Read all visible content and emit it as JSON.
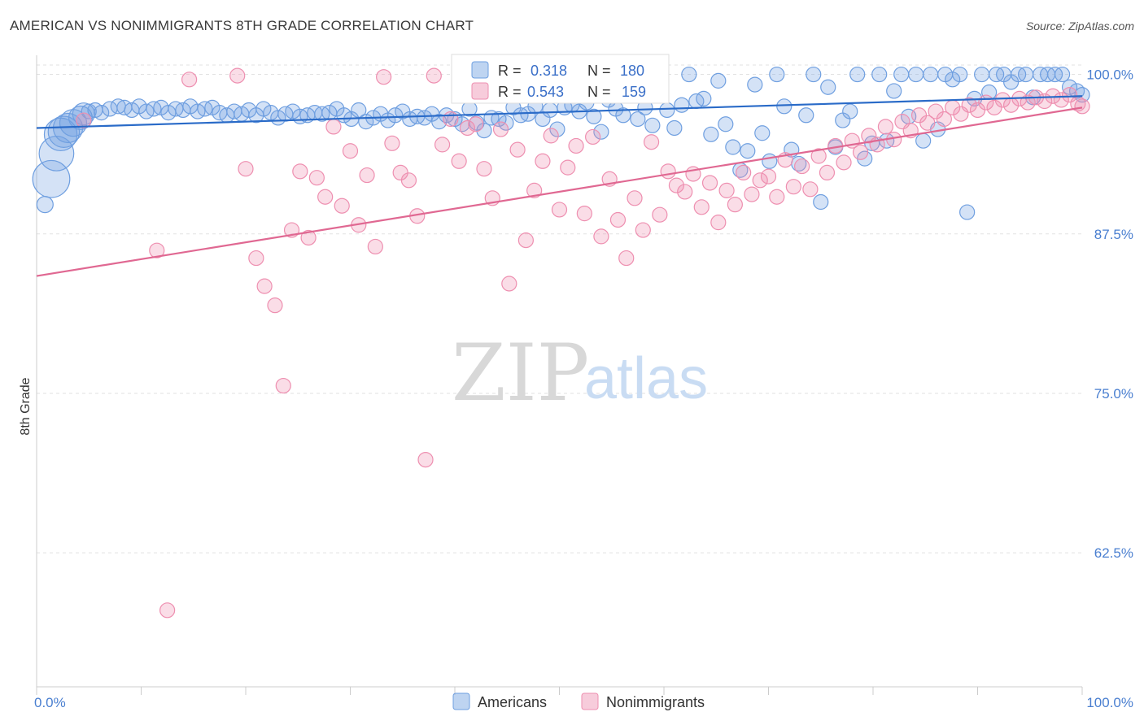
{
  "title": "AMERICAN VS NONIMMIGRANTS 8TH GRADE CORRELATION CHART",
  "source": "Source: ZipAtlas.com",
  "watermark": {
    "zip": "ZIP",
    "atlas": "atlas"
  },
  "colors": {
    "blue": "#6f9fe0",
    "blue_fill": "rgba(111,159,224,0.30)",
    "blue_line": "#2a6bc8",
    "pink": "#ee8fb0",
    "pink_fill": "rgba(238,143,176,0.30)",
    "pink_line": "#e06892",
    "grid": "#e2e2e2",
    "tick_text": "#4a7fd0"
  },
  "chart_data": {
    "type": "scatter",
    "title": "AMERICAN VS NONIMMIGRANTS 8TH GRADE CORRELATION CHART",
    "xlabel": "",
    "ylabel": "8th Grade",
    "xlim": [
      0,
      100
    ],
    "ylim": [
      52,
      101.5
    ],
    "x_tick_labels": [
      "0.0%",
      "100.0%"
    ],
    "y_ticks": [
      {
        "value": 100.0,
        "label": "100.0%"
      },
      {
        "value": 87.5,
        "label": "87.5%"
      },
      {
        "value": 75.0,
        "label": "75.0%"
      },
      {
        "value": 62.5,
        "label": "62.5%"
      }
    ],
    "legend": {
      "series": [
        {
          "name": "Americans",
          "r_label": "R =",
          "r": "0.318",
          "n_label": "N =",
          "n": "180"
        },
        {
          "name": "Nonimmigrants",
          "r_label": "R =",
          "r": "0.543",
          "n_label": "N =",
          "n": "159"
        }
      ]
    },
    "series": [
      {
        "name": "Americans",
        "trend": [
          [
            0,
            95.8
          ],
          [
            100,
            98.3
          ]
        ],
        "points": [
          [
            0.8,
            89.8
          ],
          [
            1.4,
            91.8
          ],
          [
            1.9,
            93.8
          ],
          [
            2.3,
            95.3
          ],
          [
            2.6,
            95.5
          ],
          [
            3.0,
            95.8
          ],
          [
            3.5,
            96.2
          ],
          [
            4.2,
            96.6
          ],
          [
            4.5,
            96.9
          ],
          [
            5.0,
            97.1
          ],
          [
            5.6,
            97.2
          ],
          [
            6.2,
            97.0
          ],
          [
            7.0,
            97.3
          ],
          [
            7.8,
            97.5
          ],
          [
            8.4,
            97.4
          ],
          [
            9.1,
            97.2
          ],
          [
            9.8,
            97.5
          ],
          [
            10.5,
            97.1
          ],
          [
            11.2,
            97.3
          ],
          [
            11.9,
            97.4
          ],
          [
            12.6,
            97.0
          ],
          [
            13.3,
            97.3
          ],
          [
            14.0,
            97.2
          ],
          [
            14.7,
            97.5
          ],
          [
            15.4,
            97.1
          ],
          [
            16.1,
            97.3
          ],
          [
            16.8,
            97.4
          ],
          [
            17.5,
            97.0
          ],
          [
            18.2,
            96.8
          ],
          [
            18.9,
            97.1
          ],
          [
            19.6,
            96.9
          ],
          [
            20.3,
            97.2
          ],
          [
            21.0,
            96.8
          ],
          [
            21.7,
            97.3
          ],
          [
            22.4,
            97.0
          ],
          [
            23.1,
            96.6
          ],
          [
            23.8,
            96.9
          ],
          [
            24.5,
            97.1
          ],
          [
            25.2,
            96.7
          ],
          [
            25.9,
            96.8
          ],
          [
            26.6,
            97.0
          ],
          [
            27.3,
            96.9
          ],
          [
            28.0,
            97.0
          ],
          [
            28.7,
            97.3
          ],
          [
            29.4,
            96.8
          ],
          [
            30.1,
            96.5
          ],
          [
            30.8,
            97.2
          ],
          [
            31.5,
            96.3
          ],
          [
            32.2,
            96.6
          ],
          [
            32.9,
            96.9
          ],
          [
            33.6,
            96.4
          ],
          [
            34.3,
            96.8
          ],
          [
            35.0,
            97.1
          ],
          [
            35.7,
            96.5
          ],
          [
            36.4,
            96.7
          ],
          [
            37.1,
            96.6
          ],
          [
            37.8,
            96.9
          ],
          [
            38.5,
            96.3
          ],
          [
            39.2,
            96.8
          ],
          [
            40.0,
            96.5
          ],
          [
            40.7,
            96.1
          ],
          [
            41.4,
            97.3
          ],
          [
            42.1,
            96.2
          ],
          [
            42.8,
            95.6
          ],
          [
            43.5,
            96.6
          ],
          [
            44.2,
            96.5
          ],
          [
            44.9,
            96.2
          ],
          [
            45.6,
            97.4
          ],
          [
            46.3,
            96.8
          ],
          [
            47.0,
            96.9
          ],
          [
            47.7,
            97.5
          ],
          [
            48.4,
            96.5
          ],
          [
            49.1,
            97.2
          ],
          [
            49.8,
            95.7
          ],
          [
            50.5,
            97.4
          ],
          [
            51.2,
            97.6
          ],
          [
            51.9,
            97.1
          ],
          [
            52.6,
            97.8
          ],
          [
            53.3,
            96.7
          ],
          [
            54.0,
            95.5
          ],
          [
            54.7,
            98.0
          ],
          [
            55.4,
            97.3
          ],
          [
            56.1,
            96.8
          ],
          [
            56.8,
            98.6
          ],
          [
            57.5,
            96.5
          ],
          [
            58.2,
            97.4
          ],
          [
            58.9,
            96.0
          ],
          [
            59.6,
            99.1
          ],
          [
            60.3,
            97.2
          ],
          [
            61.0,
            95.8
          ],
          [
            61.7,
            97.6
          ],
          [
            62.4,
            100.0
          ],
          [
            63.1,
            97.9
          ],
          [
            63.8,
            98.1
          ],
          [
            64.5,
            95.3
          ],
          [
            65.2,
            99.5
          ],
          [
            65.9,
            96.1
          ],
          [
            66.6,
            94.3
          ],
          [
            67.3,
            92.5
          ],
          [
            68.0,
            94.0
          ],
          [
            68.7,
            99.2
          ],
          [
            69.4,
            95.4
          ],
          [
            70.1,
            93.2
          ],
          [
            70.8,
            100.0
          ],
          [
            71.5,
            97.5
          ],
          [
            72.2,
            94.1
          ],
          [
            72.9,
            93.0
          ],
          [
            73.6,
            96.8
          ],
          [
            74.3,
            100.0
          ],
          [
            75.0,
            90.0
          ],
          [
            75.7,
            99.0
          ],
          [
            76.4,
            94.3
          ],
          [
            77.1,
            96.4
          ],
          [
            77.8,
            97.1
          ],
          [
            78.5,
            100.0
          ],
          [
            79.2,
            93.4
          ],
          [
            79.9,
            94.6
          ],
          [
            80.6,
            100.0
          ],
          [
            81.3,
            94.8
          ],
          [
            82.0,
            98.7
          ],
          [
            82.7,
            100.0
          ],
          [
            83.4,
            96.7
          ],
          [
            84.1,
            100.0
          ],
          [
            84.8,
            94.8
          ],
          [
            85.5,
            100.0
          ],
          [
            86.2,
            95.7
          ],
          [
            86.9,
            100.0
          ],
          [
            87.6,
            99.6
          ],
          [
            88.3,
            100.0
          ],
          [
            89.0,
            89.2
          ],
          [
            89.7,
            98.1
          ],
          [
            90.4,
            100.0
          ],
          [
            91.1,
            98.6
          ],
          [
            91.8,
            100.0
          ],
          [
            92.5,
            100.0
          ],
          [
            93.2,
            99.4
          ],
          [
            93.9,
            100.0
          ],
          [
            94.6,
            100.0
          ],
          [
            95.3,
            98.2
          ],
          [
            96.0,
            100.0
          ],
          [
            96.7,
            100.0
          ],
          [
            97.4,
            100.0
          ],
          [
            98.1,
            100.0
          ],
          [
            98.8,
            99.0
          ],
          [
            99.5,
            98.7
          ],
          [
            100.0,
            98.4
          ]
        ]
      },
      {
        "name": "Nonimmigrants",
        "trend": [
          [
            0,
            84.2
          ],
          [
            100,
            97.4
          ]
        ],
        "points": [
          [
            4.5,
            96.4
          ],
          [
            11.5,
            86.2
          ],
          [
            12.5,
            58.0
          ],
          [
            14.6,
            99.6
          ],
          [
            19.2,
            99.9
          ],
          [
            20.0,
            92.6
          ],
          [
            21.0,
            85.6
          ],
          [
            21.8,
            83.4
          ],
          [
            22.8,
            81.9
          ],
          [
            23.6,
            75.6
          ],
          [
            24.4,
            87.8
          ],
          [
            25.2,
            92.4
          ],
          [
            26.0,
            87.2
          ],
          [
            26.8,
            91.9
          ],
          [
            27.6,
            90.4
          ],
          [
            28.4,
            95.9
          ],
          [
            29.2,
            89.7
          ],
          [
            30.0,
            94.0
          ],
          [
            30.8,
            88.2
          ],
          [
            31.6,
            92.1
          ],
          [
            32.4,
            86.5
          ],
          [
            33.2,
            99.8
          ],
          [
            34.0,
            94.6
          ],
          [
            34.8,
            92.3
          ],
          [
            35.6,
            91.7
          ],
          [
            36.4,
            88.9
          ],
          [
            37.2,
            69.8
          ],
          [
            38.0,
            99.9
          ],
          [
            38.8,
            94.5
          ],
          [
            39.6,
            96.5
          ],
          [
            40.4,
            93.2
          ],
          [
            41.2,
            95.8
          ],
          [
            42.0,
            96.1
          ],
          [
            42.8,
            92.6
          ],
          [
            43.6,
            90.3
          ],
          [
            44.4,
            95.7
          ],
          [
            45.2,
            83.6
          ],
          [
            46.0,
            94.1
          ],
          [
            46.8,
            87.0
          ],
          [
            47.6,
            90.9
          ],
          [
            48.4,
            93.2
          ],
          [
            49.2,
            95.2
          ],
          [
            50.0,
            89.4
          ],
          [
            50.8,
            92.7
          ],
          [
            51.6,
            94.4
          ],
          [
            52.4,
            89.1
          ],
          [
            53.2,
            95.1
          ],
          [
            54.0,
            87.3
          ],
          [
            54.8,
            91.8
          ],
          [
            55.6,
            88.6
          ],
          [
            56.4,
            85.6
          ],
          [
            57.2,
            90.3
          ],
          [
            58.0,
            87.8
          ],
          [
            58.8,
            94.7
          ],
          [
            59.6,
            89.0
          ],
          [
            60.4,
            92.4
          ],
          [
            61.2,
            91.3
          ],
          [
            62.0,
            90.8
          ],
          [
            62.8,
            92.2
          ],
          [
            63.6,
            89.6
          ],
          [
            64.4,
            91.5
          ],
          [
            65.2,
            88.4
          ],
          [
            66.0,
            90.9
          ],
          [
            66.8,
            89.8
          ],
          [
            67.6,
            92.3
          ],
          [
            68.4,
            90.6
          ],
          [
            69.2,
            91.7
          ],
          [
            70.0,
            92.0
          ],
          [
            70.8,
            90.4
          ],
          [
            71.6,
            93.3
          ],
          [
            72.4,
            91.2
          ],
          [
            73.2,
            92.8
          ],
          [
            74.0,
            91.0
          ],
          [
            74.8,
            93.6
          ],
          [
            75.6,
            92.3
          ],
          [
            76.4,
            94.4
          ],
          [
            77.2,
            93.1
          ],
          [
            78.0,
            94.8
          ],
          [
            78.8,
            93.9
          ],
          [
            79.6,
            95.2
          ],
          [
            80.4,
            94.5
          ],
          [
            81.2,
            95.9
          ],
          [
            82.0,
            94.9
          ],
          [
            82.8,
            96.3
          ],
          [
            83.6,
            95.6
          ],
          [
            84.4,
            96.8
          ],
          [
            85.2,
            96.2
          ],
          [
            86.0,
            97.1
          ],
          [
            86.8,
            96.5
          ],
          [
            87.6,
            97.4
          ],
          [
            88.4,
            96.9
          ],
          [
            89.2,
            97.6
          ],
          [
            90.0,
            97.2
          ],
          [
            90.8,
            97.8
          ],
          [
            91.6,
            97.4
          ],
          [
            92.4,
            98.0
          ],
          [
            93.2,
            97.6
          ],
          [
            94.0,
            98.1
          ],
          [
            94.8,
            97.8
          ],
          [
            95.6,
            98.2
          ],
          [
            96.4,
            97.9
          ],
          [
            97.2,
            98.3
          ],
          [
            98.0,
            98.0
          ],
          [
            98.8,
            98.4
          ],
          [
            99.6,
            97.7
          ],
          [
            100.0,
            97.5
          ]
        ]
      }
    ]
  }
}
